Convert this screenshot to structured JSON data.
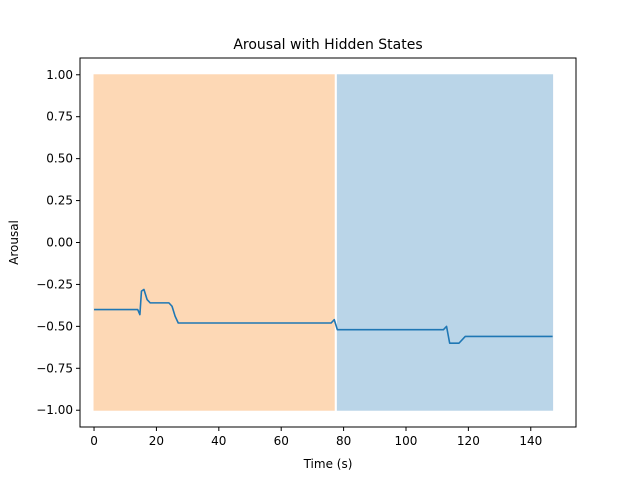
{
  "chart_data": {
    "type": "line",
    "title": "Arousal with Hidden States",
    "xlabel": "Time (s)",
    "ylabel": "Arousal",
    "xlim": [
      -4.5,
      154.5
    ],
    "ylim": [
      -1.1,
      1.1
    ],
    "xticks": [
      0,
      20,
      40,
      60,
      80,
      100,
      120,
      140
    ],
    "yticks": [
      1.0,
      0.75,
      0.5,
      0.25,
      0.0,
      -0.25,
      -0.5,
      -0.75,
      -1.0
    ],
    "ytick_labels": [
      "1.00",
      "0.75",
      "0.50",
      "0.25",
      "0.00",
      "−0.25",
      "−0.50",
      "−0.75",
      "−1.00"
    ],
    "xtick_labels": [
      "0",
      "20",
      "40",
      "60",
      "80",
      "100",
      "120",
      "140"
    ],
    "grid": false,
    "line_color": "#1f77b4",
    "states": [
      {
        "x0": 0,
        "x1": 77,
        "y0": -1.0,
        "y1": 1.0,
        "color": "#fdd8b5"
      },
      {
        "x0": 78,
        "x1": 147,
        "y0": -1.0,
        "y1": 1.0,
        "color": "#bad5e8"
      }
    ],
    "series": [
      {
        "x": [
          0,
          14,
          14.7,
          15.2,
          16,
          17,
          18,
          20,
          24,
          25,
          26,
          27,
          30,
          76,
          77,
          78,
          80,
          112,
          113,
          114,
          116,
          117,
          119,
          130,
          147
        ],
        "y": [
          -0.4,
          -0.4,
          -0.43,
          -0.29,
          -0.28,
          -0.34,
          -0.36,
          -0.36,
          -0.36,
          -0.38,
          -0.44,
          -0.48,
          -0.48,
          -0.48,
          -0.46,
          -0.52,
          -0.52,
          -0.52,
          -0.5,
          -0.6,
          -0.6,
          -0.6,
          -0.56,
          -0.56,
          -0.56
        ]
      }
    ]
  }
}
